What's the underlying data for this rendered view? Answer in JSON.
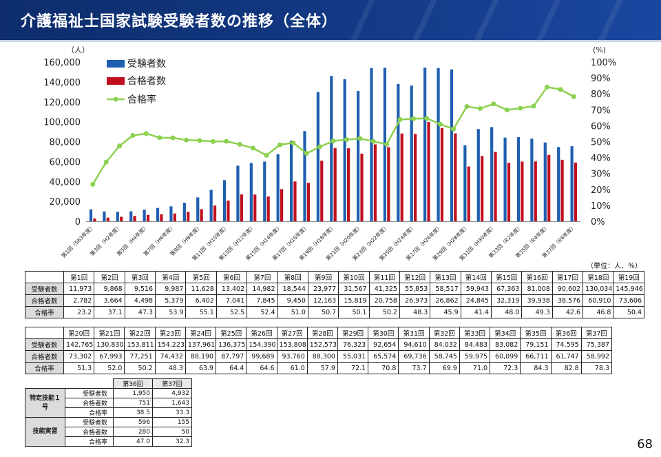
{
  "header": {
    "title": "介護福祉士国家試験受験者数の推移（全体）"
  },
  "page_number": "68",
  "unit_note": "（単位：人、％）",
  "colors": {
    "examinees": "#1f5fb0",
    "passers": "#c0101e",
    "rate": "#8cd14f",
    "header_bg": "#133a86"
  },
  "chart_data": {
    "type": "bar",
    "x_tick_labels": [
      "第1回（S63年度）",
      "第3回（H2年度）",
      "第5回（H4年度）",
      "第7回（H6年度）",
      "第9回（H8年度）",
      "第11回（H10年度）",
      "第13回（H12年度）",
      "第15回（H14年度）",
      "第17回（H16年度）",
      "第19回（H18年度）",
      "第21回（H20年度）",
      "第23回（H22年度）",
      "第25回（H24年度）",
      "第27回（H26年度）",
      "第29回（H28年度）",
      "第31回（H30年度）",
      "第33回（R2年度）",
      "第35回（R4年度）",
      "第37回（R6年度）"
    ],
    "series": [
      {
        "name": "受験者数",
        "axis": "left",
        "values": [
          11973,
          9868,
          9516,
          9987,
          11628,
          13402,
          14982,
          18544,
          23977,
          31567,
          41325,
          55853,
          58517,
          59943,
          67363,
          81008,
          90602,
          130034,
          145946,
          142765,
          130830,
          153811,
          154223,
          137961,
          136375,
          154390,
          153808,
          152573,
          76323,
          92654,
          94610,
          84032,
          84483,
          83082,
          79151,
          74595,
          75387
        ]
      },
      {
        "name": "合格者数",
        "axis": "left",
        "values": [
          2782,
          3664,
          4498,
          5379,
          6402,
          7041,
          7845,
          9450,
          12163,
          15819,
          20758,
          26973,
          26862,
          24845,
          32319,
          39938,
          38576,
          60910,
          73606,
          73302,
          67993,
          77251,
          74432,
          88190,
          87797,
          99689,
          93760,
          88300,
          55031,
          65574,
          69736,
          58745,
          59975,
          60099,
          66711,
          61747,
          58992
        ]
      },
      {
        "name": "合格率",
        "axis": "right",
        "type": "line",
        "values": [
          23.2,
          37.1,
          47.3,
          53.9,
          55.1,
          52.5,
          52.4,
          51.0,
          50.7,
          50.1,
          50.2,
          48.3,
          45.9,
          41.4,
          48.0,
          49.3,
          42.6,
          46.8,
          50.4,
          51.3,
          52.0,
          50.2,
          48.3,
          63.9,
          64.4,
          64.6,
          61.0,
          57.9,
          72.1,
          70.8,
          73.7,
          69.9,
          71.0,
          72.3,
          84.3,
          82.8,
          78.3
        ]
      }
    ],
    "ylabel_left": "（人）",
    "ylabel_right": "(%)",
    "ylim_left": [
      0,
      160000
    ],
    "ylim_right": [
      0,
      100
    ],
    "left_ticks": [
      "160,000",
      "140,000",
      "120,000",
      "100,000",
      "80,000",
      "60,000",
      "40,000",
      "20,000",
      "0"
    ],
    "right_ticks": [
      "100%",
      "90%",
      "80%",
      "70%",
      "60%",
      "50%",
      "40%",
      "30%",
      "20%",
      "10%",
      "0%"
    ],
    "legend_position": "top-left",
    "grid": false
  },
  "table1": {
    "row_labels": [
      "受験者数",
      "合格者数",
      "合格率"
    ],
    "cols": [
      "第1回",
      "第2回",
      "第3回",
      "第4回",
      "第5回",
      "第6回",
      "第7回",
      "第8回",
      "第9回",
      "第10回",
      "第11回",
      "第12回",
      "第13回",
      "第14回",
      "第15回",
      "第16回",
      "第17回",
      "第18回",
      "第19回"
    ],
    "examinees": [
      "11,973",
      "9,868",
      "9,516",
      "9,987",
      "11,628",
      "13,402",
      "14,982",
      "18,544",
      "23,977",
      "31,567",
      "41,325",
      "55,853",
      "58,517",
      "59,943",
      "67,363",
      "81,008",
      "90,602",
      "130,034",
      "145,946"
    ],
    "passers": [
      "2,782",
      "3,664",
      "4,498",
      "5,379",
      "6,402",
      "7,041",
      "7,845",
      "9,450",
      "12,163",
      "15,819",
      "20,758",
      "26,973",
      "26,862",
      "24,845",
      "32,319",
      "39,938",
      "38,576",
      "60,910",
      "73,606"
    ],
    "rate": [
      "23.2",
      "37.1",
      "47.3",
      "53.9",
      "55.1",
      "52.5",
      "52.4",
      "51.0",
      "50.7",
      "50.1",
      "50.2",
      "48.3",
      "45.9",
      "41.4",
      "48.0",
      "49.3",
      "42.6",
      "46.8",
      "50.4"
    ]
  },
  "table2": {
    "row_labels": [
      "受験者数",
      "合格者数",
      "合格率"
    ],
    "cols": [
      "第20回",
      "第21回",
      "第22回",
      "第23回",
      "第24回",
      "第25回",
      "第26回",
      "第27回",
      "第28回",
      "第29回",
      "第30回",
      "第31回",
      "第32回",
      "第33回",
      "第34回",
      "第35回",
      "第36回",
      "第37回"
    ],
    "examinees": [
      "142,765",
      "130,830",
      "153,811",
      "154,223",
      "137,961",
      "136,375",
      "154,390",
      "153,808",
      "152,573",
      "76,323",
      "92,654",
      "94,610",
      "84,032",
      "84,483",
      "83,082",
      "79,151",
      "74,595",
      "75,387"
    ],
    "passers": [
      "73,302",
      "67,993",
      "77,251",
      "74,432",
      "88,190",
      "87,797",
      "99,689",
      "93,760",
      "88,300",
      "55,031",
      "65,574",
      "69,736",
      "58,745",
      "59,975",
      "60,099",
      "66,711",
      "61,747",
      "58,992"
    ],
    "rate": [
      "51.3",
      "52.0",
      "50.2",
      "48.3",
      "63.9",
      "64.4",
      "64.6",
      "61.0",
      "57.9",
      "72.1",
      "70.8",
      "73.7",
      "69.9",
      "71.0",
      "72.3",
      "84.3",
      "82.8",
      "78.3"
    ]
  },
  "table3": {
    "cols": [
      "第36回",
      "第37回"
    ],
    "groups": [
      {
        "label": "特定技能１号",
        "rows": [
          {
            "label": "受験者数",
            "values": [
              "1,950",
              "4,932"
            ]
          },
          {
            "label": "合格者数",
            "values": [
              "751",
              "1,643"
            ]
          },
          {
            "label": "合格率",
            "values": [
              "38.5",
              "33.3"
            ]
          }
        ]
      },
      {
        "label": "技能実習",
        "rows": [
          {
            "label": "受験者数",
            "values": [
              "596",
              "155"
            ]
          },
          {
            "label": "合格者数",
            "values": [
              "280",
              "50"
            ]
          },
          {
            "label": "合格率",
            "values": [
              "47.0",
              "32.3"
            ]
          }
        ]
      }
    ]
  }
}
